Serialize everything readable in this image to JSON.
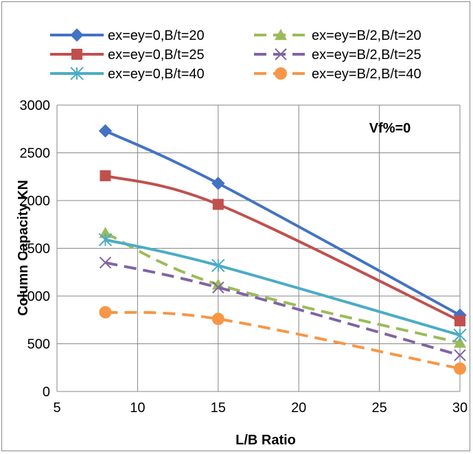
{
  "chart_data": {
    "type": "line",
    "title": "",
    "xlabel": "L/B Ratio",
    "ylabel": "Column Capacity KN",
    "xlim": [
      5,
      30
    ],
    "ylim": [
      0,
      3000
    ],
    "xticks": [
      5,
      10,
      15,
      20,
      25,
      30
    ],
    "yticks": [
      0,
      500,
      1000,
      1500,
      2000,
      2500,
      3000
    ],
    "grid": true,
    "legend_position": "top",
    "annotation": "Vf%=0",
    "x": [
      8,
      15,
      30
    ],
    "series": [
      {
        "name": "ex=ey=0,B/t=20",
        "values": [
          2730,
          2180,
          800
        ],
        "color": "#4472C4",
        "dash": false,
        "marker": "diamond"
      },
      {
        "name": "ex=ey=B/2,B/t=20",
        "values": [
          1660,
          1120,
          510
        ],
        "color": "#9BBB59",
        "dash": true,
        "marker": "triangle"
      },
      {
        "name": "ex=ey=0,B/t=25",
        "values": [
          2260,
          1960,
          740
        ],
        "color": "#C0504D",
        "dash": false,
        "marker": "square"
      },
      {
        "name": "ex=ey=B/2,B/t=25",
        "values": [
          1350,
          1090,
          380
        ],
        "color": "#8064A2",
        "dash": true,
        "marker": "x"
      },
      {
        "name": "ex=ey=0,B/t=40",
        "values": [
          1590,
          1320,
          590
        ],
        "color": "#4BACC6",
        "dash": false,
        "marker": "star"
      },
      {
        "name": "ex=ey=B/2,B/t=40",
        "values": [
          830,
          760,
          240
        ],
        "color": "#F79646",
        "dash": true,
        "marker": "circle"
      }
    ]
  }
}
